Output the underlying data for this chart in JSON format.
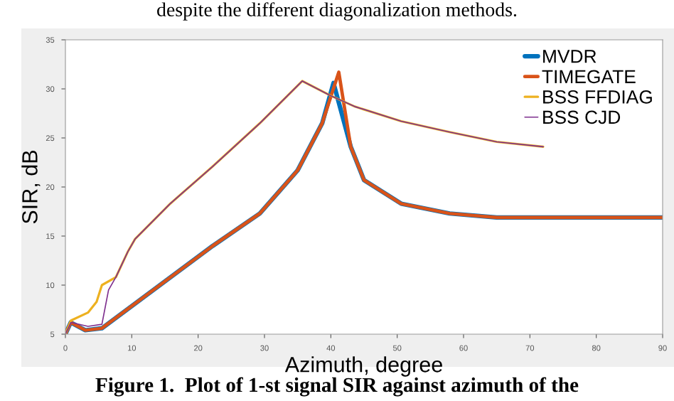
{
  "chart_data": {
    "type": "line",
    "xlabel": "Azimuth, degree",
    "ylabel": "SIR, dB",
    "annotations": [
      "despite the different diagonalization methods.",
      "Figure 1.  Plot of 1-st signal SIR against azimuth of the"
    ],
    "xlim": [
      0,
      90
    ],
    "xticks": [
      0,
      10,
      20,
      30,
      40,
      50,
      60,
      70,
      80,
      90
    ],
    "ylim": [
      5,
      35
    ],
    "yticks": [
      5,
      10,
      15,
      20,
      25,
      30,
      35
    ],
    "grid": false,
    "legend": "top right",
    "line_style": "solid",
    "marker": "none",
    "series": [
      {
        "name": "MVDR",
        "color": "#0072bd",
        "x": [
          0,
          0.8,
          3,
          5.5,
          22.2,
          29.3,
          35,
          38.7,
          40.4,
          43,
          45,
          50.6,
          57.9,
          65,
          90
        ],
        "values": [
          5,
          6.2,
          5.4,
          5.6,
          14,
          17.3,
          21.7,
          26.5,
          30.6,
          24.1,
          20.7,
          18.3,
          17.3,
          16.9,
          16.9
        ]
      },
      {
        "name": "TIMEGATE",
        "color": "#d95319",
        "x": [
          0,
          0.8,
          3,
          5.5,
          22.2,
          29.3,
          35,
          38.7,
          41.2,
          43,
          45,
          50.6,
          57.9,
          65,
          90
        ],
        "values": [
          5,
          6.2,
          5.4,
          5.6,
          14,
          17.3,
          21.7,
          26.5,
          31.7,
          24.1,
          20.7,
          18.3,
          17.3,
          16.9,
          16.9
        ]
      },
      {
        "name": "BSS FFDIAG",
        "color": "#edb120",
        "x": [
          0,
          0.85,
          3.4,
          4.7,
          5.5,
          7.6,
          9.4,
          10.5,
          15.8,
          22.2,
          29.3,
          35.7,
          40,
          43.6,
          50.6,
          57.9,
          65,
          72
        ],
        "values": [
          5,
          6.4,
          7.2,
          8.3,
          10,
          10.8,
          13.4,
          14.7,
          18.3,
          22.1,
          26.5,
          30.8,
          29.3,
          28.2,
          26.7,
          25.6,
          24.6,
          24.1
        ]
      },
      {
        "name": "BSS CJD",
        "color": "#7e2f8e",
        "x": [
          0,
          0.85,
          3.4,
          5.5,
          6.5,
          7.6,
          9.4,
          10.5,
          15.8,
          22.2,
          29.3,
          35.7,
          40,
          43.6,
          50.6,
          57.9,
          65,
          72
        ],
        "values": [
          5,
          6.2,
          5.8,
          6,
          9.5,
          10.8,
          13.4,
          14.7,
          18.3,
          22.1,
          26.5,
          30.8,
          29.3,
          28.2,
          26.7,
          25.6,
          24.6,
          24.1
        ]
      }
    ]
  }
}
